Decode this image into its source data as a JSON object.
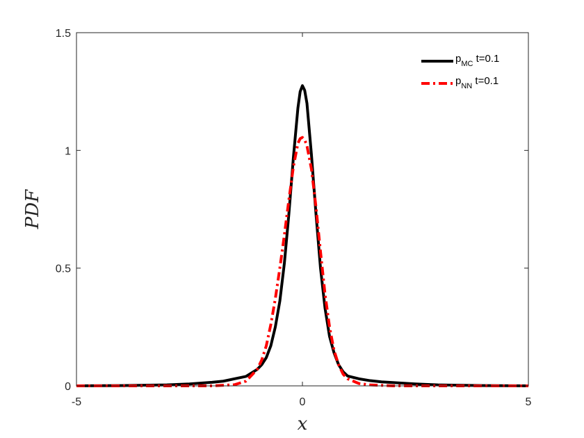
{
  "chart_data": {
    "type": "line",
    "xlabel": "x",
    "ylabel": "PDF",
    "xlim": [
      -5,
      5
    ],
    "ylim": [
      0,
      1.5
    ],
    "x_ticks": [
      "-5",
      "0",
      "5"
    ],
    "y_ticks": [
      "0",
      "0.5",
      "1",
      "1.5"
    ],
    "grid": false,
    "legend_position": "top-right",
    "series": [
      {
        "name_base": "p",
        "name_sub": "MC",
        "name_suffix": " t=0.1",
        "color": "#000000",
        "style": "solid",
        "x": [
          -5,
          -4,
          -3,
          -2.5,
          -2,
          -1.75,
          -1.5,
          -1.25,
          -1,
          -0.9,
          -0.8,
          -0.7,
          -0.6,
          -0.5,
          -0.4,
          -0.3,
          -0.2,
          -0.1,
          -0.05,
          0,
          0.05,
          0.1,
          0.2,
          0.3,
          0.4,
          0.5,
          0.6,
          0.7,
          0.8,
          0.9,
          1,
          1.25,
          1.5,
          1.75,
          2,
          2.5,
          3,
          4,
          5
        ],
        "y": [
          0,
          0.001,
          0.004,
          0.008,
          0.015,
          0.02,
          0.03,
          0.04,
          0.07,
          0.09,
          0.12,
          0.17,
          0.25,
          0.36,
          0.52,
          0.73,
          0.97,
          1.18,
          1.25,
          1.275,
          1.255,
          1.2,
          0.98,
          0.73,
          0.5,
          0.33,
          0.21,
          0.14,
          0.09,
          0.06,
          0.042,
          0.03,
          0.022,
          0.017,
          0.014,
          0.008,
          0.004,
          0.001,
          0
        ]
      },
      {
        "name_base": "p",
        "name_sub": "NN",
        "name_suffix": " t=0.1",
        "color": "#ff0000",
        "style": "dashdot",
        "x": [
          -5,
          -3,
          -2,
          -1.5,
          -1.25,
          -1,
          -0.9,
          -0.8,
          -0.7,
          -0.6,
          -0.5,
          -0.4,
          -0.3,
          -0.2,
          -0.1,
          -0.05,
          0,
          0.05,
          0.1,
          0.2,
          0.3,
          0.4,
          0.5,
          0.6,
          0.7,
          0.8,
          0.9,
          1,
          1.25,
          1.5,
          2,
          3,
          5
        ],
        "y": [
          0,
          0,
          0,
          0.005,
          0.02,
          0.07,
          0.11,
          0.17,
          0.26,
          0.37,
          0.5,
          0.64,
          0.79,
          0.93,
          1.03,
          1.05,
          1.055,
          1.045,
          1.02,
          0.92,
          0.76,
          0.57,
          0.39,
          0.25,
          0.15,
          0.09,
          0.05,
          0.03,
          0.01,
          0.004,
          0,
          0,
          0
        ]
      }
    ]
  }
}
